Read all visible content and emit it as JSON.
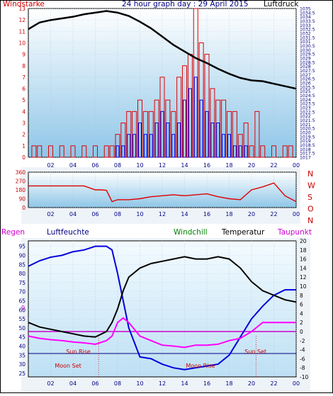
{
  "colors": {
    "wind": "#e00000",
    "gust": "#0000ee",
    "pressure": "#000000",
    "direction": "#e00000",
    "humidity": "#0000dd",
    "temperature": "#000000",
    "dewpoint": "#ff00ff",
    "windchill": "#008000",
    "rain": "#cc00cc",
    "axis_red": "#cc0000",
    "axis_blue": "#000080",
    "plot_top": "#ffffff",
    "plot_bottom": "#8ec6e8",
    "panel": "#eef3f8"
  },
  "labels": {
    "windstaerke": "Windstarke",
    "title": "24 hour graph day : 29 April 2015",
    "luftdruck": "Luftdruck",
    "regen": "Regen",
    "luftfeuchte": "Luftfeuchte",
    "windchill": "Windchill",
    "temperatur": "Temperatur",
    "taupunkt": "Taupunkt",
    "sun_rise": "Sun Rise",
    "sun_set": "Sun Set",
    "moon_set": "Moon Set",
    "moon_rise": "Moon Rise",
    "rain_zero": "0"
  },
  "chart_data": [
    {
      "type": "line",
      "title": "24 hour graph day : 29 April 2015",
      "x_ticks": [
        "02",
        "04",
        "06",
        "08",
        "10",
        "12",
        "14",
        "16",
        "18",
        "20",
        "22",
        "00"
      ],
      "left_axis": {
        "label": "Windstarke",
        "ylim": [
          0,
          13
        ],
        "ticks": [
          0,
          1,
          2,
          3,
          4,
          5,
          6,
          7,
          8,
          9,
          10,
          11,
          12,
          13
        ]
      },
      "right_axis": {
        "label": "Luftdruck",
        "ylim": [
          1017,
          1035
        ],
        "ticks": [
          "1017",
          "1017.5",
          "1018",
          "1018.5",
          "1019",
          "1019.5",
          "1020",
          "1020.5",
          "1021",
          "1021.5",
          "1022",
          "1022.5",
          "1023",
          "1023.5",
          "1024",
          "1024.5",
          "1025",
          "1025.5",
          "1026",
          "1026.5",
          "1027",
          "1027.5",
          "1028",
          "1028.5",
          "1029",
          "1029.5",
          "1030",
          "1030.5",
          "1031",
          "1031.5",
          "1032",
          "1032.5",
          "1033",
          "1033.5",
          "1034",
          "1034.5",
          "1035"
        ]
      },
      "series": [
        {
          "name": "Luftdruck",
          "axis": "right",
          "x": [
            0,
            1,
            2,
            3,
            4,
            5,
            6,
            7,
            8,
            9,
            10,
            11,
            12,
            13,
            14,
            15,
            16,
            17,
            18,
            19,
            20,
            21,
            22,
            23,
            24
          ],
          "y": [
            1032.5,
            1033.3,
            1033.6,
            1033.8,
            1034.0,
            1034.3,
            1034.5,
            1034.7,
            1034.5,
            1034.1,
            1033.4,
            1032.6,
            1031.6,
            1030.6,
            1029.8,
            1029.0,
            1028.4,
            1027.7,
            1027.1,
            1026.6,
            1026.3,
            1026.2,
            1025.9,
            1025.6,
            1025.3
          ]
        }
      ],
      "wind_bars": {
        "hours": [
          0.5,
          1,
          2,
          3,
          4,
          5,
          6,
          7,
          7.5,
          8,
          8.5,
          9,
          9.5,
          10,
          10.5,
          11,
          11.5,
          12,
          12.5,
          13,
          13.5,
          14,
          14.5,
          15,
          15.5,
          16,
          16.5,
          17,
          17.5,
          18,
          18.5,
          19,
          19.5,
          20,
          20.5,
          21,
          22,
          23,
          23.5
        ],
        "windstaerke": [
          1,
          1,
          1,
          1,
          1,
          1,
          1,
          1,
          1,
          2,
          3,
          4,
          4,
          5,
          4,
          4,
          5,
          7,
          5,
          4,
          7,
          8,
          9,
          13,
          10,
          9,
          6,
          5,
          5,
          4,
          4,
          2,
          3,
          1,
          4,
          1,
          1,
          1,
          1
        ],
        "boeen": [
          0,
          0,
          0,
          0,
          0,
          0,
          0,
          0,
          0,
          1,
          1,
          2,
          2,
          3,
          2,
          2,
          3,
          4,
          3,
          2,
          3,
          5,
          6,
          7,
          5,
          4,
          3,
          3,
          2,
          2,
          1,
          1,
          1,
          0,
          0,
          0,
          0,
          0,
          0
        ]
      }
    },
    {
      "type": "line",
      "title": "",
      "x_ticks": [
        "02",
        "04",
        "06",
        "08",
        "10",
        "12",
        "14",
        "16",
        "18",
        "20",
        "22",
        "00"
      ],
      "left_axis": {
        "ylim": [
          0,
          360
        ],
        "ticks": [
          0,
          90,
          180,
          270,
          360
        ]
      },
      "right_axis": {
        "ticks": [
          "N",
          "W",
          "S",
          "O",
          "N"
        ]
      },
      "series": [
        {
          "name": "",
          "x": [
            0,
            1,
            2,
            3,
            4,
            5,
            6,
            6.5,
            7,
            7.5,
            8,
            9,
            10,
            11,
            12,
            13,
            14,
            15,
            16,
            17,
            18,
            19,
            20,
            21,
            22,
            23,
            24
          ],
          "y": [
            220,
            220,
            220,
            220,
            220,
            220,
            180,
            180,
            175,
            60,
            80,
            80,
            90,
            110,
            120,
            130,
            120,
            130,
            140,
            110,
            90,
            80,
            180,
            210,
            250,
            120,
            60
          ]
        }
      ]
    },
    {
      "type": "line",
      "title": "",
      "x_ticks": [
        "02",
        "04",
        "06",
        "08",
        "10",
        "12",
        "14",
        "16",
        "18",
        "20",
        "22",
        "00"
      ],
      "left_axis": {
        "label": "Luftfeuchte",
        "ylim": [
          23,
          98
        ],
        "ticks": [
          25,
          30,
          35,
          40,
          45,
          50,
          55,
          60,
          65,
          70,
          75,
          80,
          85,
          90,
          95
        ]
      },
      "right_axis": {
        "label": "Temperatur",
        "ylim": [
          -10,
          20
        ],
        "ticks": [
          -10,
          -8,
          -6,
          -4,
          -2,
          0,
          2,
          4,
          6,
          8,
          10,
          12,
          14,
          16,
          18,
          20
        ]
      },
      "series": [
        {
          "name": "Luftfeuchte",
          "axis": "left",
          "x": [
            0,
            1,
            2,
            3,
            4,
            5,
            6,
            7,
            7.5,
            8,
            8.5,
            9,
            10,
            11,
            12,
            13,
            14,
            15,
            16,
            17,
            18,
            19,
            20,
            21,
            22,
            23,
            24
          ],
          "y": [
            84,
            87,
            89,
            90,
            92,
            93,
            95,
            95,
            93,
            80,
            65,
            50,
            34,
            33,
            30,
            28,
            27,
            28,
            29,
            30,
            35,
            45,
            55,
            62,
            68,
            71,
            71
          ]
        },
        {
          "name": "Temperatur",
          "axis": "right",
          "x": [
            0,
            1,
            2,
            3,
            4,
            5,
            6,
            7,
            7.5,
            8,
            8.5,
            9,
            10,
            11,
            12,
            13,
            14,
            15,
            16,
            17,
            18,
            19,
            20,
            21,
            22,
            23,
            24
          ],
          "y": [
            2,
            1,
            0.5,
            0,
            -0.5,
            -1,
            -1.2,
            0,
            2,
            5,
            9,
            12,
            14,
            15,
            15.5,
            16,
            16.5,
            16,
            16,
            16.5,
            16,
            14,
            11,
            9,
            8,
            7,
            6.5
          ]
        },
        {
          "name": "Taupunkt",
          "axis": "right",
          "x": [
            0,
            1,
            2,
            3,
            4,
            5,
            6,
            7,
            7.5,
            8,
            8.5,
            9,
            10,
            11,
            12,
            13,
            14,
            15,
            16,
            17,
            18,
            19,
            20,
            21,
            22,
            23,
            24
          ],
          "y": [
            -1,
            -1.5,
            -1.8,
            -2,
            -2.3,
            -2.5,
            -2.8,
            -2,
            -1,
            2,
            3,
            2,
            -1,
            -2,
            -3,
            -3.2,
            -3.5,
            -3,
            -3,
            -2.8,
            -2,
            -1.5,
            0,
            2,
            2,
            2,
            2
          ]
        }
      ],
      "reference_lines": [
        {
          "name": "Regen",
          "value": 0
        }
      ],
      "events": {
        "sun_rise": 6.3,
        "sun_set": 20.4,
        "moon_set": 5.8,
        "moon_rise": 14.5
      }
    }
  ]
}
